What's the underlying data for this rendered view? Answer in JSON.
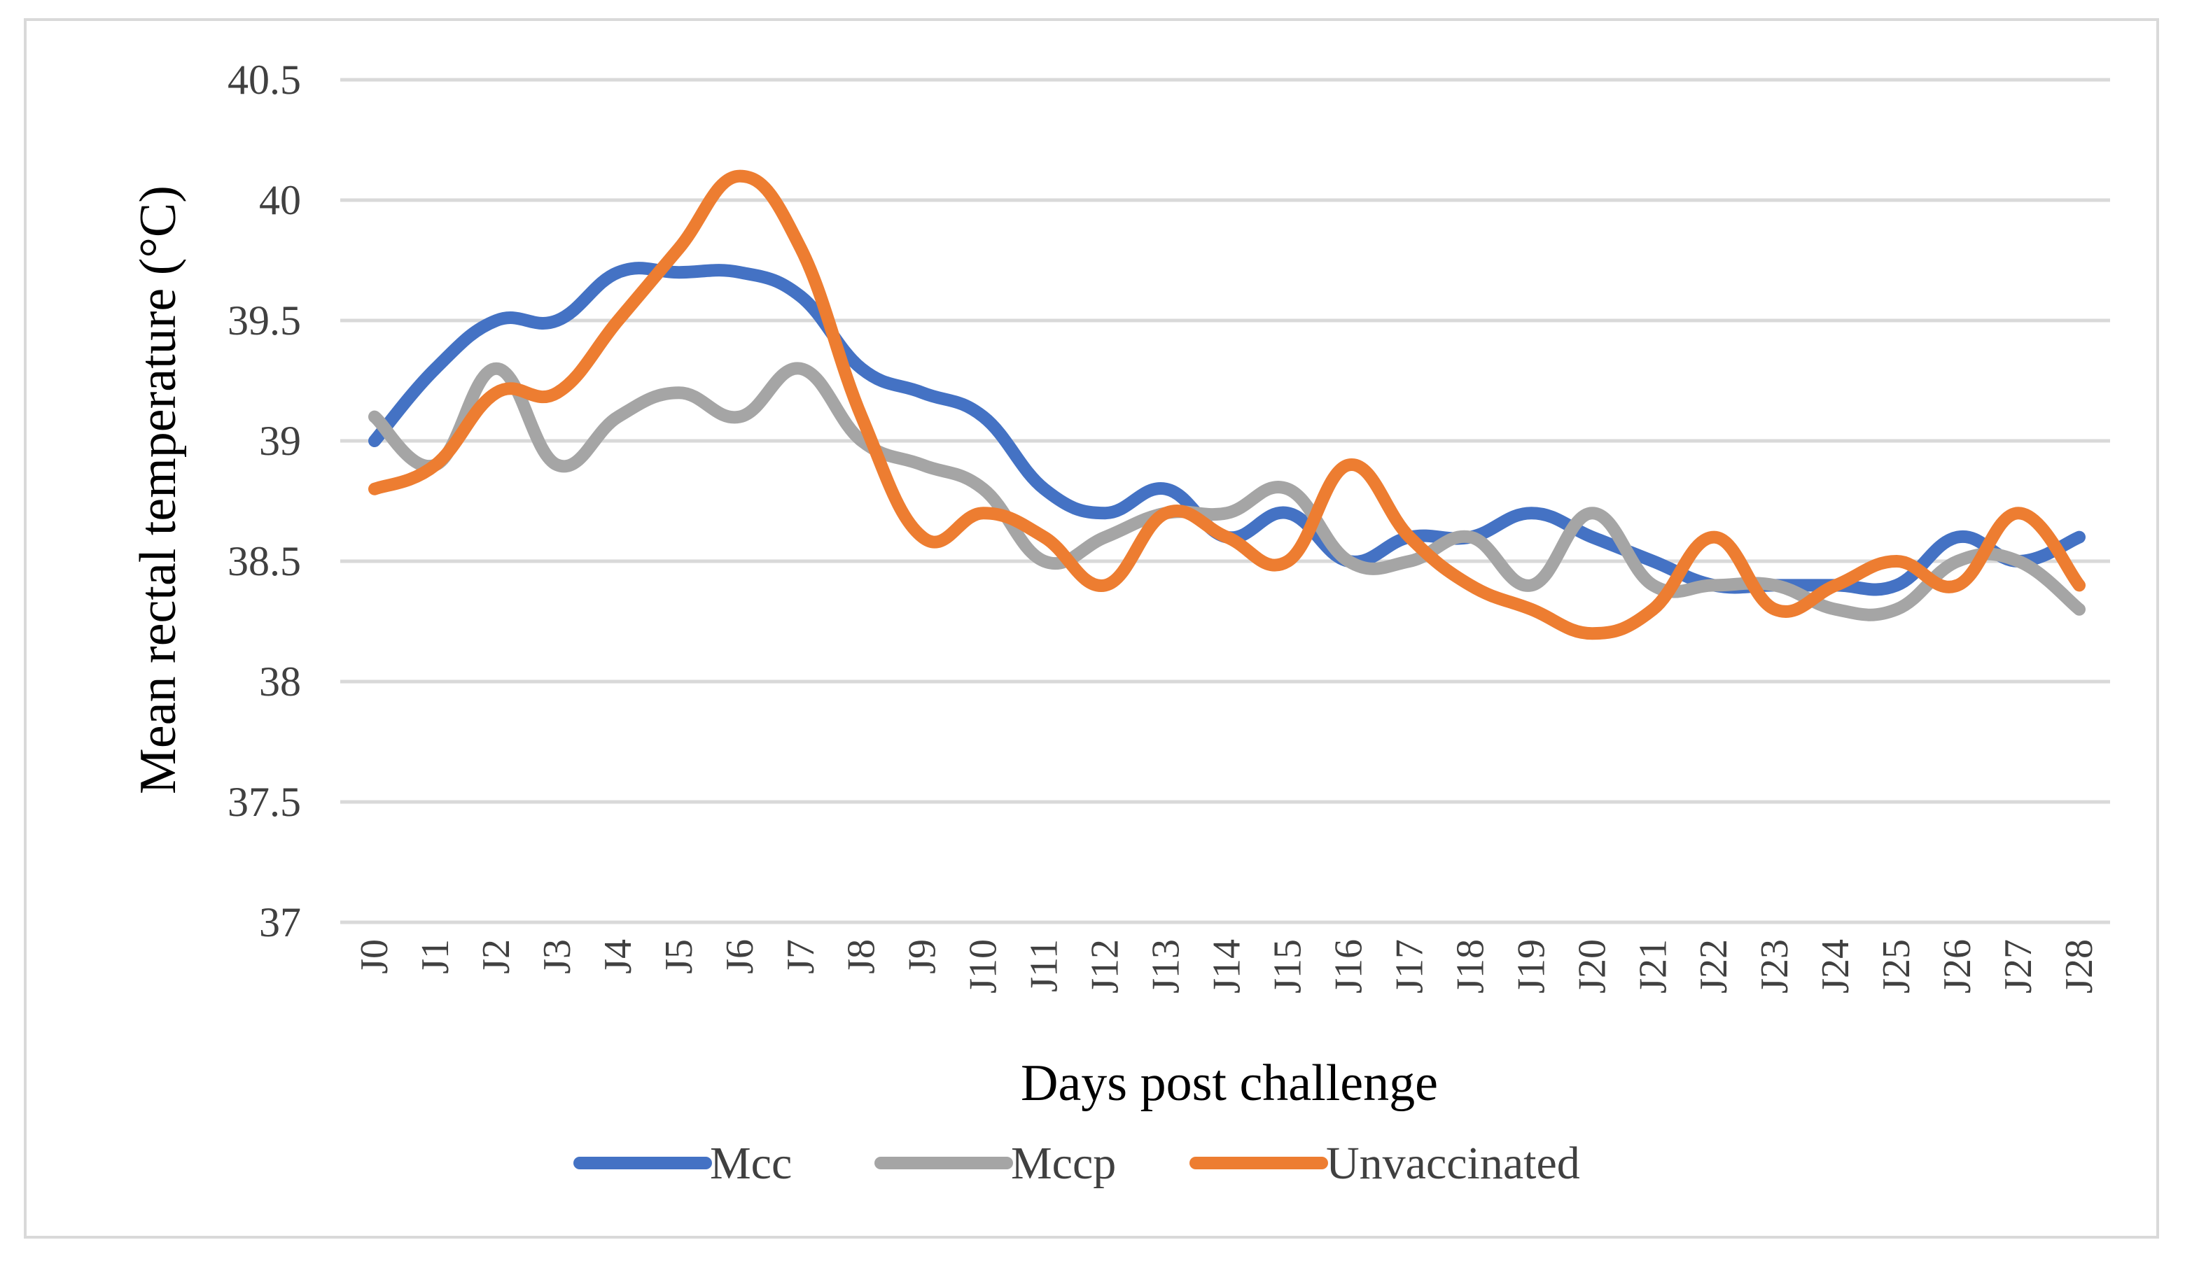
{
  "chart_data": {
    "type": "line",
    "title": "",
    "xlabel": "Days post challenge",
    "ylabel": "Mean rectal temperature (°C)",
    "ylim": [
      37,
      40.5
    ],
    "yticks": [
      "37",
      "37.5",
      "38",
      "38.5",
      "39",
      "39.5",
      "40",
      "40.5"
    ],
    "grid": true,
    "legend_position": "bottom",
    "categories": [
      "J0",
      "J1",
      "J2",
      "J3",
      "J4",
      "J5",
      "J6",
      "J7",
      "J8",
      "J9",
      "J10",
      "J11",
      "J12",
      "J13",
      "J14",
      "J15",
      "J16",
      "J17",
      "J18",
      "J19",
      "J20",
      "J21",
      "J22",
      "J23",
      "J24",
      "J25",
      "J26",
      "J27",
      "J28"
    ],
    "series": [
      {
        "name": "Mcc",
        "color": "#4472c4",
        "values": [
          39.0,
          39.3,
          39.5,
          39.5,
          39.7,
          39.7,
          39.7,
          39.6,
          39.3,
          39.2,
          39.1,
          38.8,
          38.7,
          38.8,
          38.6,
          38.7,
          38.5,
          38.6,
          38.6,
          38.7,
          38.6,
          38.5,
          38.4,
          38.4,
          38.4,
          38.4,
          38.6,
          38.5,
          38.6
        ]
      },
      {
        "name": "Mccp",
        "color": "#a5a5a5",
        "values": [
          39.1,
          38.9,
          39.3,
          38.9,
          39.1,
          39.2,
          39.1,
          39.3,
          39.0,
          38.9,
          38.8,
          38.5,
          38.6,
          38.7,
          38.7,
          38.8,
          38.5,
          38.5,
          38.6,
          38.4,
          38.7,
          38.4,
          38.4,
          38.4,
          38.3,
          38.3,
          38.5,
          38.5,
          38.3
        ]
      },
      {
        "name": "Unvaccinated",
        "color": "#ed7d31",
        "values": [
          38.8,
          38.9,
          39.2,
          39.2,
          39.5,
          39.8,
          40.1,
          39.8,
          39.1,
          38.6,
          38.7,
          38.6,
          38.4,
          38.7,
          38.6,
          38.5,
          38.9,
          38.6,
          38.4,
          38.3,
          38.2,
          38.3,
          38.6,
          38.3,
          38.4,
          38.5,
          38.4,
          38.7,
          38.4
        ]
      }
    ]
  }
}
